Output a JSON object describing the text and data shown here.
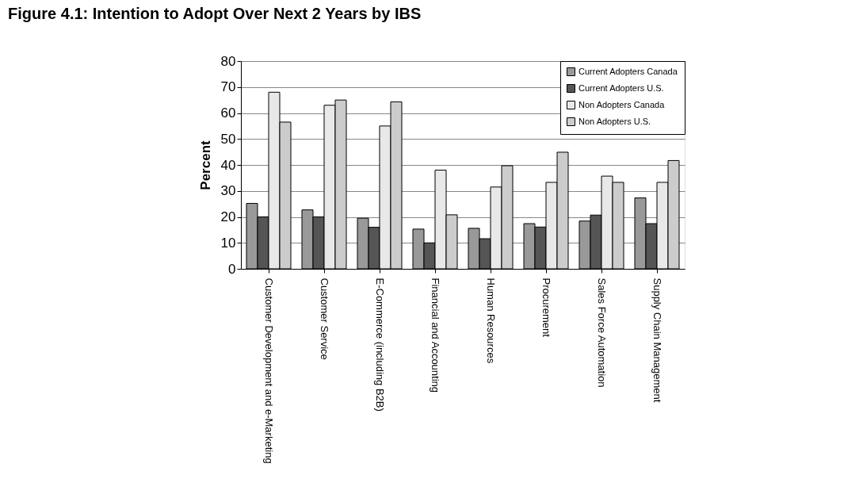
{
  "chart_data": {
    "type": "bar",
    "title": "Figure 4.1: Intention to Adopt Over Next 2 Years by IBS",
    "ylabel": "Percent",
    "categories": [
      "Customer Development and e-Marketing",
      "Customer Service",
      "E-Commerce (including B2B)",
      "Financial and Accounting",
      "Human Resources",
      "Procurement",
      "Sales Force Automation",
      "Supply Chain Management"
    ],
    "series": [
      {
        "name": "Current Adopters Canada",
        "color": "#999999",
        "values": [
          25.2,
          22.7,
          19.5,
          15.3,
          15.6,
          17.4,
          18.4,
          27.3
        ]
      },
      {
        "name": "Current Adopters U.S.",
        "color": "#555555",
        "values": [
          20,
          20,
          16,
          10,
          11.6,
          16.1,
          20.7,
          17.4
        ]
      },
      {
        "name": "Non Adopters Canada",
        "color": "#e8e8e8",
        "values": [
          68,
          63,
          55,
          38,
          31.5,
          33.3,
          35.7,
          33.3
        ]
      },
      {
        "name": "Non Adopters U.S.",
        "color": "#cccccc",
        "values": [
          56.5,
          65,
          64.3,
          20.8,
          39.7,
          44.9,
          33.3,
          41.7
        ]
      }
    ],
    "ylim": [
      0,
      80
    ],
    "yticks": [
      0,
      10,
      20,
      30,
      40,
      50,
      60,
      70,
      80
    ],
    "grid": "y",
    "legend": "top right"
  }
}
